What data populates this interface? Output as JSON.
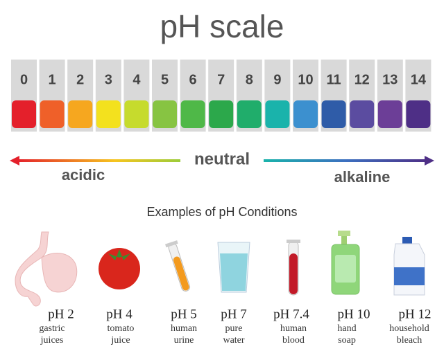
{
  "title": "pH scale",
  "scale": {
    "levels": [
      0,
      1,
      2,
      3,
      4,
      5,
      6,
      7,
      8,
      9,
      10,
      11,
      12,
      13,
      14
    ],
    "colors": [
      "#e4202b",
      "#ef6029",
      "#f6a71f",
      "#f3e11e",
      "#c6db2d",
      "#87c442",
      "#4fb848",
      "#2ca84b",
      "#20ad6b",
      "#1ab3ab",
      "#3c90cf",
      "#2f5ca8",
      "#5b4ca0",
      "#6c3e97",
      "#4e2f86"
    ]
  },
  "neutral": "neutral",
  "acidic": "acidic",
  "alkaline": "alkaline",
  "examples_title": "Examples of pH Conditions",
  "examples": [
    {
      "ph": "pH 2",
      "desc": [
        "gastric",
        "juices"
      ]
    },
    {
      "ph": "pH 4",
      "desc": [
        "tomato",
        "juice"
      ]
    },
    {
      "ph": "pH 5",
      "desc": [
        "human",
        "urine"
      ]
    },
    {
      "ph": "pH 7",
      "desc": [
        "pure",
        "water"
      ]
    },
    {
      "ph": "pH 7.4",
      "desc": [
        "human",
        "blood"
      ]
    },
    {
      "ph": "pH 10",
      "desc": [
        "hand",
        "soap"
      ]
    },
    {
      "ph": "pH 12",
      "desc": [
        "household",
        "bleach"
      ]
    }
  ]
}
